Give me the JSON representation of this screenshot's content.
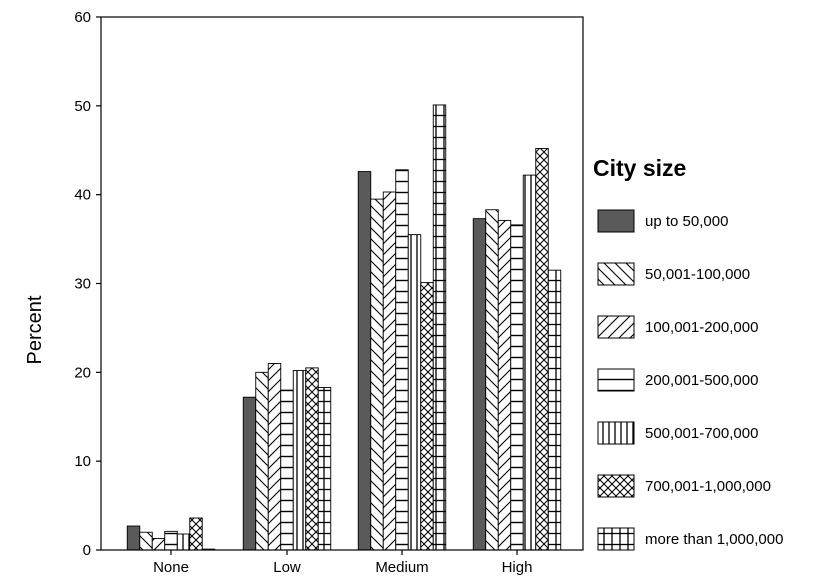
{
  "chart_data": {
    "type": "bar",
    "categories": [
      "None",
      "Low",
      "Medium",
      "High"
    ],
    "ylabel": "Percent",
    "xlabel": "",
    "ylim": [
      0,
      60
    ],
    "yticks": [
      0,
      10,
      20,
      30,
      40,
      50,
      60
    ],
    "grid": false,
    "legend": {
      "title": "City size",
      "placement": "right"
    },
    "series": [
      {
        "name": "up to 50,000",
        "pattern": "solid",
        "color": "#5a5a5a",
        "values": [
          2.7,
          17.2,
          42.6,
          37.3
        ]
      },
      {
        "name": "50,001-100,000",
        "pattern": "diag-down",
        "color": "#000000",
        "values": [
          2.0,
          20.0,
          39.5,
          38.3
        ]
      },
      {
        "name": "100,001-200,000",
        "pattern": "diag-up",
        "color": "#000000",
        "values": [
          1.3,
          21.0,
          40.3,
          37.1
        ]
      },
      {
        "name": "200,001-500,000",
        "pattern": "horizontal",
        "color": "#000000",
        "values": [
          2.1,
          18.0,
          42.8,
          36.6
        ]
      },
      {
        "name": "500,001-700,000",
        "pattern": "vertical",
        "color": "#000000",
        "values": [
          1.8,
          20.2,
          35.5,
          42.2
        ]
      },
      {
        "name": "700,001-1,000,000",
        "pattern": "crosshatch",
        "color": "#000000",
        "values": [
          3.6,
          20.5,
          30.1,
          45.2
        ]
      },
      {
        "name": "more than 1,000,000",
        "pattern": "grid",
        "color": "#000000",
        "values": [
          0.1,
          18.3,
          50.1,
          31.5
        ]
      }
    ]
  }
}
